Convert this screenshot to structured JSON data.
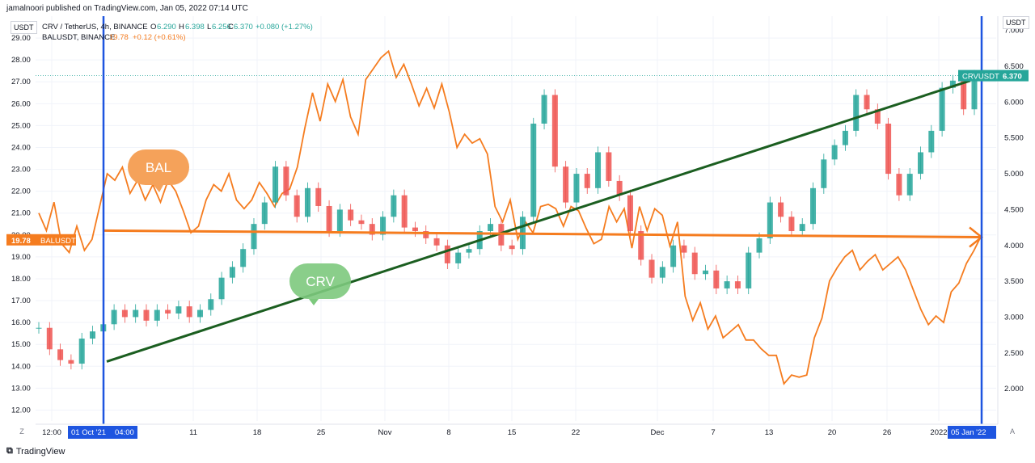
{
  "header": {
    "publish_text": "jamalnoori published on TradingView.com, Jan 05, 2022 07:14 UTC"
  },
  "footer": {
    "brand": "TradingView",
    "brand_icon": "tv-logo-icon"
  },
  "units": {
    "left": "USDT",
    "right": "USDT"
  },
  "corner": {
    "left": "Z",
    "right": "A"
  },
  "legend": {
    "crv": {
      "symbol": "CRV / TetherUS, 4h, BINANCE",
      "o_label": "O",
      "o": "6.290",
      "h_label": "H",
      "h": "6.398",
      "l_label": "L",
      "l": "6.256",
      "c_label": "C",
      "c": "6.370",
      "change": "+0.080 (+1.27%)"
    },
    "bal": {
      "symbol": "BALUSDT, BINANCE",
      "value": "19.78",
      "change": "+0.12 (+0.61%)"
    }
  },
  "badges": {
    "bal_price": "19.78",
    "bal_name": "BALUSDT",
    "crv_name": "CRVUSDT",
    "crv_price": "6.370"
  },
  "annotations": {
    "bal_label": "BAL",
    "crv_label": "CRV",
    "vline1_date": "01 Oct '21",
    "vline1_time": "04:00",
    "vline2_date": "05 Jan '22"
  },
  "colors": {
    "bal_line": "#f57c1f",
    "crv_up": "#26a69a",
    "crv_down": "#ef5350",
    "trend_green": "#1b5e20",
    "trend_orange": "#f57c1f",
    "vline_blue": "#1e55e0",
    "bal_bubble": "#f5a25a",
    "crv_bubble": "#7dc97d",
    "badge_teal": "#26a69a",
    "badge_orange": "#f57c1f"
  },
  "chart_data": {
    "type": "line",
    "title": "CRV / TetherUS, 4h, BINANCE",
    "x_ticks": [
      "12:00",
      "01 Oct '21",
      "11",
      "18",
      "25",
      "Nov",
      "8",
      "15",
      "22",
      "Dec",
      "7",
      "13",
      "20",
      "26",
      "2022",
      "05 Jan '22"
    ],
    "y_left_label": "USDT",
    "y_left_ticks": [
      12.0,
      13.0,
      14.0,
      15.0,
      16.0,
      17.0,
      18.0,
      19.0,
      20.0,
      21.0,
      22.0,
      23.0,
      24.0,
      25.0,
      26.0,
      27.0,
      28.0,
      29.0
    ],
    "y_left_range": [
      11.5,
      30.0
    ],
    "y_right_label": "USDT",
    "y_right_ticks": [
      2.0,
      2.5,
      3.0,
      3.5,
      4.0,
      4.5,
      5.0,
      5.5,
      6.0,
      6.5,
      7.0
    ],
    "y_right_range": [
      1.55,
      7.2
    ],
    "series": [
      {
        "name": "BALUSDT, BINANCE",
        "axis": "left",
        "style": "line",
        "values": [
          21.0,
          20.2,
          21.5,
          19.6,
          19.2,
          20.4,
          19.3,
          19.8,
          21.3,
          22.8,
          22.5,
          23.1,
          21.9,
          22.5,
          21.6,
          22.3,
          21.5,
          22.5,
          22.0,
          21.1,
          20.1,
          20.4,
          21.6,
          22.3,
          22.0,
          22.8,
          21.6,
          21.2,
          21.6,
          22.4,
          21.9,
          21.3,
          21.9,
          22.1,
          23.1,
          24.9,
          26.5,
          25.2,
          26.9,
          26.1,
          27.1,
          25.4,
          24.6,
          27.1,
          27.6,
          28.1,
          28.4,
          27.2,
          27.8,
          26.9,
          25.9,
          26.7,
          25.8,
          26.9,
          25.6,
          24.0,
          24.6,
          24.2,
          24.4,
          23.7,
          21.3,
          20.6,
          21.6,
          19.8,
          20.6,
          20.1,
          21.3,
          21.4,
          21.2,
          20.4,
          21.3,
          21.1,
          20.3,
          19.6,
          19.8,
          21.3,
          20.6,
          21.2,
          19.4,
          21.3,
          20.2,
          21.2,
          20.9,
          19.5,
          20.6,
          17.2,
          16.1,
          16.9,
          15.7,
          16.3,
          15.3,
          15.6,
          15.9,
          15.2,
          15.2,
          14.8,
          14.5,
          14.5,
          13.2,
          13.6,
          13.5,
          13.6,
          15.3,
          16.2,
          17.9,
          18.5,
          19.0,
          19.3,
          18.4,
          18.8,
          19.1,
          18.4,
          18.7,
          19.0,
          18.4,
          17.5,
          16.6,
          15.9,
          16.3,
          16.0,
          17.4,
          17.8,
          18.7,
          19.3,
          20.0
        ],
        "x_start": "01 Oct '21",
        "x_end": "05 Jan '22"
      },
      {
        "name": "CRV / TetherUS, 4h, BINANCE",
        "axis": "right",
        "style": "candles",
        "closes": [
          2.85,
          2.55,
          2.4,
          2.35,
          2.7,
          2.8,
          2.9,
          3.1,
          3.0,
          3.1,
          2.95,
          3.1,
          3.05,
          3.15,
          3.0,
          3.1,
          3.25,
          3.55,
          3.7,
          3.95,
          4.3,
          4.6,
          5.1,
          4.7,
          4.4,
          4.8,
          4.55,
          4.2,
          4.5,
          4.35,
          4.3,
          4.15,
          4.4,
          4.7,
          4.25,
          4.2,
          4.1,
          4.0,
          3.75,
          3.9,
          3.95,
          4.2,
          4.3,
          4.0,
          3.95,
          4.4,
          5.7,
          6.1,
          5.1,
          4.6,
          5.0,
          4.8,
          5.3,
          4.9,
          4.7,
          4.2,
          3.8,
          3.55,
          3.7,
          4.0,
          3.9,
          3.6,
          3.65,
          3.4,
          3.5,
          3.4,
          3.9,
          4.1,
          4.6,
          4.4,
          4.2,
          4.3,
          4.8,
          5.2,
          5.4,
          5.6,
          6.1,
          5.9,
          5.7,
          5.0,
          4.7,
          5.0,
          5.3,
          5.6,
          6.2,
          6.3,
          5.9,
          6.37
        ],
        "last": "6.370"
      },
      {
        "name": "CRV trendline",
        "axis": "right",
        "style": "trendline",
        "from": [
          "01 Oct '21",
          2.38
        ],
        "to": [
          "05 Jan '22",
          6.3
        ]
      },
      {
        "name": "BAL trendline",
        "axis": "left",
        "style": "trendline",
        "from": [
          "01 Oct '21",
          20.2
        ],
        "to": [
          "05 Jan '22",
          19.9
        ]
      }
    ],
    "grid": true,
    "legend_position": "top-left"
  }
}
